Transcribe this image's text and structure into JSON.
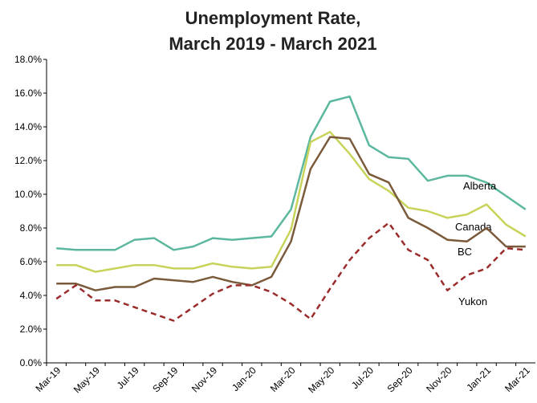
{
  "chart_data": {
    "type": "line",
    "title": [
      "Unemployment Rate,",
      "March 2019 - March 2021"
    ],
    "categories": [
      "Mar-19",
      null,
      "May-19",
      null,
      "Jul-19",
      null,
      "Sep-19",
      null,
      "Nov-19",
      null,
      "Jan-20",
      null,
      "Mar-20",
      null,
      "May-20",
      null,
      "Jul-20",
      null,
      "Sep-20",
      null,
      "Nov-20",
      null,
      "Jan-21",
      null,
      "Mar-21"
    ],
    "series": [
      {
        "name": "Alberta",
        "color": "#5bb89f",
        "dashed": false,
        "values": [
          6.8,
          6.7,
          6.7,
          6.7,
          7.3,
          7.4,
          6.7,
          6.9,
          7.4,
          7.3,
          7.4,
          7.5,
          9.1,
          13.4,
          15.5,
          15.8,
          12.9,
          12.2,
          12.1,
          10.8,
          11.1,
          11.1,
          10.7,
          9.9,
          9.1
        ]
      },
      {
        "name": "Canada",
        "color": "#c8d35a",
        "dashed": false,
        "values": [
          5.8,
          5.8,
          5.4,
          5.6,
          5.8,
          5.8,
          5.6,
          5.6,
          5.9,
          5.7,
          5.6,
          5.7,
          7.9,
          13.1,
          13.7,
          12.4,
          10.9,
          10.2,
          9.2,
          9.0,
          8.6,
          8.8,
          9.4,
          8.2,
          7.5
        ]
      },
      {
        "name": "BC",
        "color": "#7a5a3a",
        "dashed": false,
        "values": [
          4.7,
          4.7,
          4.3,
          4.5,
          4.5,
          5.0,
          4.9,
          4.8,
          5.1,
          4.8,
          4.6,
          5.1,
          7.2,
          11.5,
          13.4,
          13.3,
          11.2,
          10.7,
          8.6,
          8.0,
          7.3,
          7.2,
          8.0,
          6.9,
          6.9
        ]
      },
      {
        "name": "Yukon",
        "color": "#9b2c2c",
        "dashed": true,
        "values": [
          3.8,
          4.6,
          3.7,
          3.7,
          3.3,
          2.9,
          2.5,
          3.3,
          4.1,
          4.6,
          4.6,
          4.2,
          3.5,
          2.6,
          4.4,
          6.1,
          7.4,
          8.3,
          6.7,
          6.1,
          4.3,
          5.2,
          5.6,
          6.8,
          6.7
        ]
      }
    ],
    "ylim": [
      0,
      18
    ],
    "yticks": [
      {
        "value": 0,
        "label": "0.0%"
      },
      {
        "value": 2,
        "label": "2.0%"
      },
      {
        "value": 4,
        "label": "4.0%"
      },
      {
        "value": 6,
        "label": "6.0%"
      },
      {
        "value": 8,
        "label": "8.0%"
      },
      {
        "value": 10,
        "label": "10.0%"
      },
      {
        "value": 12,
        "label": "12.0%"
      },
      {
        "value": 14,
        "label": "14.0%"
      },
      {
        "value": 16,
        "label": "16.0%"
      },
      {
        "value": 18,
        "label": "18.0%"
      }
    ],
    "grid": false
  }
}
